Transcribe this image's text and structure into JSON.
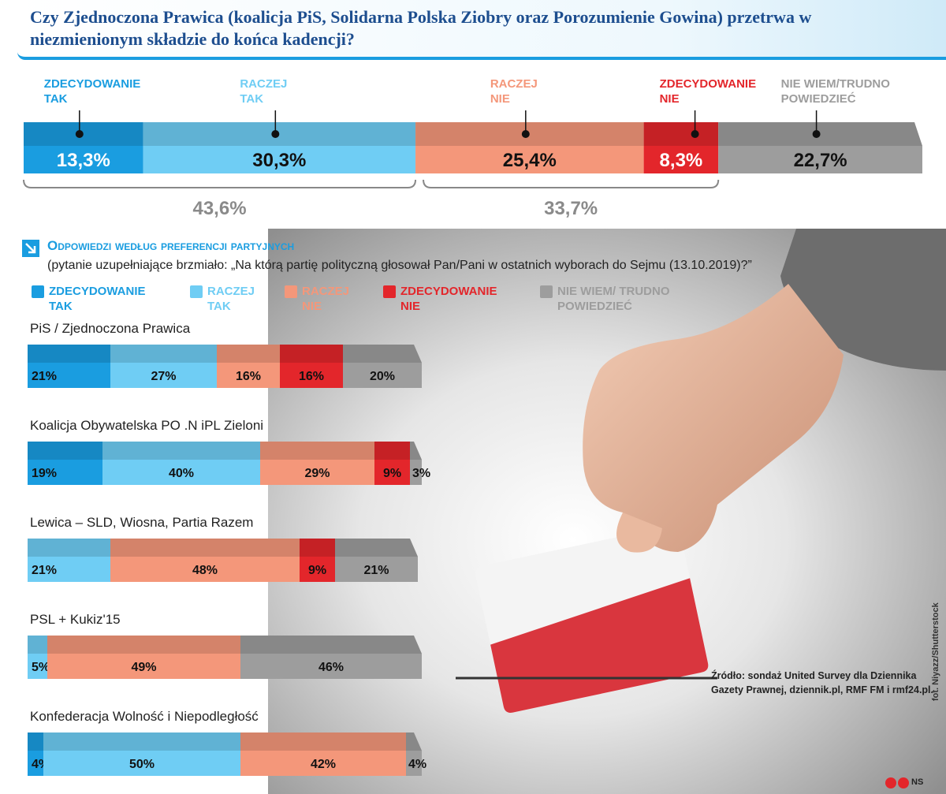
{
  "chart_data": [
    {
      "type": "stacked-bar",
      "title": "Czy Zjednoczona Prawica (koalicja PiS, Solidarna Polska Ziobry oraz Porozumienie Gowina) przetrwa w niezmienionym składzie do końca kadencji?",
      "xlim": [
        0,
        100
      ],
      "series": [
        {
          "name": "ZDECYDOWANIE TAK",
          "color": "#1a9de0",
          "values": [
            13.3
          ],
          "value_labels": [
            "13,3%"
          ]
        },
        {
          "name": "RACZEJ TAK",
          "color": "#6fcdf4",
          "values": [
            30.3
          ],
          "value_labels": [
            "30,3%"
          ]
        },
        {
          "name": "RACZEJ NIE",
          "color": "#f4977a",
          "values": [
            25.4
          ],
          "value_labels": [
            "25,4%"
          ]
        },
        {
          "name": "ZDECYDOWANIE NIE",
          "color": "#e3262b",
          "values": [
            8.3
          ],
          "value_labels": [
            "8,3%"
          ]
        },
        {
          "name": "NIE WIEM/TRUDNO POWIEDZIEĆ",
          "color": "#9d9d9d",
          "values": [
            22.7
          ],
          "value_labels": [
            "22,7%"
          ]
        }
      ],
      "annotations": [
        {
          "value": 43.6,
          "label": "43,6%"
        },
        {
          "value": 33.7,
          "label": "33,7%"
        }
      ]
    },
    {
      "type": "stacked-bar",
      "title": "Odpowiedzi według preferencji partyjnych",
      "subtitle": "(pytanie uzupełniające brzmiało: „Na którą partię polityczną głosował Pan/Pani w ostatnich wyborach do Sejmu (13.10.2019)?”",
      "xlim": [
        0,
        100
      ],
      "categories": [
        "PiS / Zjednoczona Prawica",
        "Koalicja Obywatelska PO .N iPL Zieloni",
        "Lewica – SLD, Wiosna, Partia Razem",
        "PSL + Kukiz'15",
        "Konfederacja Wolność i Niepodległość"
      ],
      "series": [
        {
          "name": "ZDECYDOWANIE TAK",
          "color": "#1a9de0",
          "values": [
            21,
            19,
            null,
            null,
            4
          ],
          "value_labels": [
            "21%",
            "19%",
            null,
            null,
            "4%"
          ]
        },
        {
          "name": "RACZEJ TAK",
          "color": "#6fcdf4",
          "values": [
            27,
            40,
            21,
            5,
            50
          ],
          "value_labels": [
            "27%",
            "40%",
            "21%",
            "5%",
            "50%"
          ]
        },
        {
          "name": "RACZEJ NIE",
          "color": "#f4977a",
          "values": [
            16,
            29,
            48,
            49,
            42
          ],
          "value_labels": [
            "16%",
            "29%",
            "48%",
            "49%",
            "42%"
          ]
        },
        {
          "name": "ZDECYDOWANIE NIE",
          "color": "#e3262b",
          "values": [
            16,
            9,
            9,
            null,
            null
          ],
          "value_labels": [
            "16%",
            "9%",
            "9%",
            null,
            null
          ]
        },
        {
          "name": "NIE WIEM/ TRUDNO POWIEDZIEĆ",
          "color": "#9d9d9d",
          "values": [
            20,
            3,
            21,
            46,
            4
          ],
          "value_labels": [
            "20%",
            "3%",
            "21%",
            "46%",
            "4%"
          ]
        }
      ]
    }
  ],
  "source": "Źródło: sondaż United Survey dla Dziennika Gazety Prawnej, dziennik.pl, RMF FM i rmf24.pl.",
  "photo_credit": "fot. Niyazz/Shutterstock",
  "author": "NS"
}
